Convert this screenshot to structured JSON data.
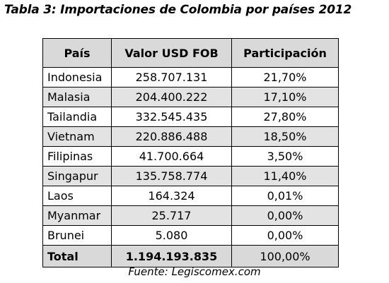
{
  "header": {
    "title": "Tabla 3: Importaciones de Colombia por países 2012"
  },
  "table": {
    "columns": [
      "País",
      "Valor USD FOB",
      "Participación"
    ],
    "rows": [
      [
        "Indonesia",
        "258.707.131",
        "21,70%"
      ],
      [
        "Malasia",
        "204.400.222",
        "17,10%"
      ],
      [
        "Tailandia",
        "332.545.435",
        "27,80%"
      ],
      [
        "Vietnam",
        "220.886.488",
        "18,50%"
      ],
      [
        "Filipinas",
        "41.700.664",
        "3,50%"
      ],
      [
        "Singapur",
        "135.758.774",
        "11,40%"
      ],
      [
        "Laos",
        "164.324",
        "0,01%"
      ],
      [
        "Myanmar",
        "25.717",
        "0,00%"
      ],
      [
        "Brunei",
        "5.080",
        "0,00%"
      ]
    ],
    "total": [
      "Total",
      "1.194.193.835",
      "100,00%"
    ]
  },
  "footer": {
    "source": "Fuente: Legiscomex.com"
  }
}
